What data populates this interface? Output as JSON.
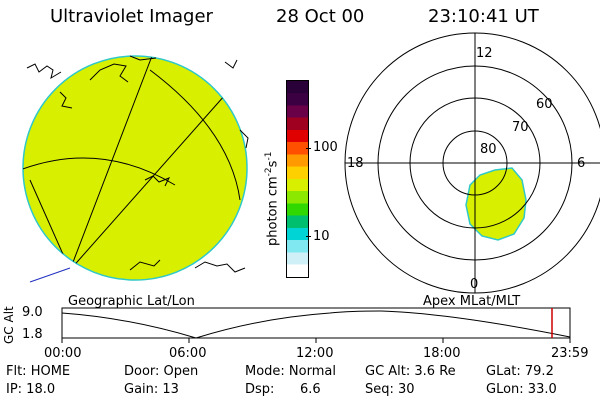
{
  "header": {
    "title": "Ultraviolet Imager",
    "date": "28 Oct 00",
    "time": "23:10:41 UT"
  },
  "colorbar": {
    "unit_label": "photon cm",
    "unit_sup1": "-2",
    "unit_s": "s",
    "unit_sup2": "-1",
    "tick_100": "100",
    "tick_10": "10",
    "colors_top_to_bottom": [
      "#2a0038",
      "#3a0042",
      "#6a0048",
      "#a00020",
      "#e00000",
      "#ff5000",
      "#ff9a00",
      "#ffd000",
      "#d8f000",
      "#8ce800",
      "#30d800",
      "#00c070",
      "#00d4d4",
      "#80e8f0",
      "#d0f0f8",
      "#ffffff"
    ]
  },
  "geo_panel": {
    "caption": "Geographic Lat/Lon",
    "fill_color": "#d8f000"
  },
  "polar_panel": {
    "caption": "Apex MLat/MLT",
    "mlt_labels": {
      "top": "12",
      "left": "18",
      "right": "6",
      "bottom": "0"
    },
    "lat_labels": [
      "60",
      "70",
      "80"
    ]
  },
  "altitude_plot": {
    "ylabel": "GC Alt",
    "y_top": "9.0",
    "y_bottom": "1.8",
    "x_ticks": [
      "00:00",
      "06:00",
      "12:00",
      "18:00",
      "23:59"
    ],
    "current_time_marker_color": "#cc0000"
  },
  "info": {
    "flt": "Flt: HOME",
    "ip": "IP: 18.0",
    "door": "Door: Open",
    "gain": "Gain: 13",
    "mode": "Mode: Normal",
    "dsp_label": "Dsp:",
    "dsp_value": "6.6",
    "gcalt": "GC Alt: 3.6 Re",
    "seq": "Seq: 30",
    "glat": "GLat: 79.2",
    "glon": "GLon: 33.0"
  }
}
